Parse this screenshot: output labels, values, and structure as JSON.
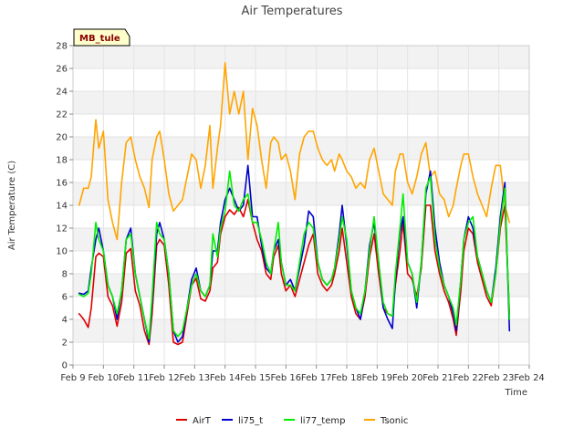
{
  "chart_data": {
    "type": "line",
    "title": "Air Temperatures",
    "xlabel": "Time",
    "ylabel": "Air Temperature (C)",
    "site_label": "MB_tule",
    "ylim": [
      0,
      28
    ],
    "yticks": [
      0,
      2,
      4,
      6,
      8,
      10,
      12,
      14,
      16,
      18,
      20,
      22,
      24,
      26,
      28
    ],
    "xlim": [
      9,
      24
    ],
    "xticks": [
      {
        "value": 9,
        "label": "Feb 9"
      },
      {
        "value": 10,
        "label": "Feb 10"
      },
      {
        "value": 11,
        "label": "Feb 11"
      },
      {
        "value": 12,
        "label": "Feb 12"
      },
      {
        "value": 13,
        "label": "Feb 13"
      },
      {
        "value": 14,
        "label": "Feb 14"
      },
      {
        "value": 15,
        "label": "Feb 15"
      },
      {
        "value": 16,
        "label": "Feb 16"
      },
      {
        "value": 17,
        "label": "Feb 17"
      },
      {
        "value": 18,
        "label": "Feb 18"
      },
      {
        "value": 19,
        "label": "Feb 19"
      },
      {
        "value": 20,
        "label": "Feb 20"
      },
      {
        "value": 21,
        "label": "Feb 21"
      },
      {
        "value": 22,
        "label": "Feb 22"
      },
      {
        "value": 23,
        "label": "Feb 23"
      },
      {
        "value": 24,
        "label": "Feb 24"
      }
    ],
    "grid": true,
    "legend_position": "bottom",
    "series": [
      {
        "name": "AirT",
        "color": "#dd0000",
        "x": [
          9.2,
          9.35,
          9.5,
          9.6,
          9.75,
          9.85,
          10.0,
          10.15,
          10.3,
          10.45,
          10.6,
          10.75,
          10.9,
          11.05,
          11.2,
          11.35,
          11.5,
          11.6,
          11.75,
          11.85,
          12.0,
          12.15,
          12.3,
          12.45,
          12.6,
          12.75,
          12.9,
          13.05,
          13.2,
          13.35,
          13.5,
          13.6,
          13.75,
          13.85,
          14.0,
          14.15,
          14.3,
          14.45,
          14.6,
          14.75,
          14.9,
          15.05,
          15.2,
          15.35,
          15.5,
          15.6,
          15.75,
          15.85,
          16.0,
          16.15,
          16.3,
          16.45,
          16.6,
          16.75,
          16.9,
          17.05,
          17.2,
          17.35,
          17.5,
          17.6,
          17.75,
          17.85,
          18.0,
          18.15,
          18.3,
          18.45,
          18.6,
          18.75,
          18.9,
          19.05,
          19.2,
          19.35,
          19.5,
          19.6,
          19.75,
          19.85,
          20.0,
          20.15,
          20.3,
          20.45,
          20.6,
          20.75,
          20.9,
          21.05,
          21.2,
          21.35,
          21.5,
          21.6,
          21.75,
          21.85,
          22.0,
          22.15,
          22.3,
          22.45,
          22.6,
          22.75,
          22.9,
          23.05,
          23.2,
          23.35
        ],
        "y": [
          4.5,
          4.0,
          3.3,
          5.0,
          9.5,
          9.8,
          9.5,
          6.0,
          5.2,
          3.4,
          5.5,
          9.8,
          10.2,
          6.5,
          5.2,
          3.0,
          1.8,
          4.5,
          10.5,
          11.0,
          10.5,
          7.0,
          2.0,
          1.8,
          2.0,
          4.5,
          7.0,
          7.6,
          5.8,
          5.6,
          6.5,
          8.5,
          9.0,
          11.5,
          13.0,
          13.6,
          13.2,
          13.8,
          13.0,
          14.5,
          12.5,
          11.0,
          10.0,
          8.0,
          7.5,
          9.5,
          10.5,
          8.0,
          6.5,
          7.0,
          6.0,
          7.5,
          9.0,
          10.5,
          11.5,
          8.0,
          7.0,
          6.5,
          7.0,
          8.0,
          10.0,
          12.0,
          9.0,
          6.0,
          4.5,
          4.0,
          6.0,
          9.5,
          11.5,
          8.0,
          5.0,
          4.5,
          4.3,
          7.0,
          10.0,
          12.5,
          8.0,
          7.5,
          6.0,
          8.5,
          14.0,
          14.0,
          10.0,
          8.0,
          6.5,
          5.5,
          4.0,
          2.6,
          6.5,
          10.0,
          12.0,
          11.5,
          9.0,
          7.5,
          6.0,
          5.2,
          8.0,
          12.0,
          14.0,
          4.5
        ]
      },
      {
        "name": "li75_t",
        "color": "#0000cc",
        "x": [
          9.2,
          9.35,
          9.5,
          9.6,
          9.75,
          9.85,
          10.0,
          10.15,
          10.3,
          10.45,
          10.6,
          10.75,
          10.9,
          11.05,
          11.2,
          11.35,
          11.5,
          11.6,
          11.75,
          11.85,
          12.0,
          12.15,
          12.3,
          12.45,
          12.6,
          12.75,
          12.9,
          13.05,
          13.2,
          13.35,
          13.5,
          13.6,
          13.75,
          13.85,
          14.0,
          14.15,
          14.3,
          14.45,
          14.6,
          14.75,
          14.9,
          15.05,
          15.2,
          15.35,
          15.5,
          15.6,
          15.75,
          15.85,
          16.0,
          16.15,
          16.3,
          16.45,
          16.6,
          16.75,
          16.9,
          17.05,
          17.2,
          17.35,
          17.5,
          17.6,
          17.75,
          17.85,
          18.0,
          18.15,
          18.3,
          18.45,
          18.6,
          18.75,
          18.9,
          19.05,
          19.2,
          19.35,
          19.5,
          19.6,
          19.75,
          19.85,
          20.0,
          20.15,
          20.3,
          20.45,
          20.6,
          20.75,
          20.9,
          21.05,
          21.2,
          21.35,
          21.5,
          21.6,
          21.75,
          21.85,
          22.0,
          22.15,
          22.3,
          22.45,
          22.6,
          22.75,
          22.9,
          23.05,
          23.2,
          23.35
        ],
        "y": [
          6.3,
          6.2,
          6.5,
          8.5,
          11.0,
          12.0,
          10.0,
          7.0,
          6.0,
          4.0,
          6.5,
          11.0,
          12.0,
          8.0,
          6.0,
          4.0,
          2.0,
          5.5,
          11.5,
          12.5,
          11.0,
          8.0,
          3.0,
          2.0,
          2.5,
          5.0,
          7.5,
          8.5,
          6.5,
          6.0,
          7.0,
          10.0,
          10.0,
          12.5,
          14.5,
          15.5,
          14.5,
          13.5,
          14.0,
          17.5,
          13.0,
          13.0,
          10.5,
          8.5,
          8.0,
          10.0,
          11.0,
          9.0,
          7.0,
          7.5,
          6.5,
          8.5,
          10.5,
          13.5,
          13.0,
          9.0,
          7.5,
          7.0,
          7.5,
          8.5,
          11.5,
          14.0,
          10.5,
          6.5,
          5.0,
          4.0,
          6.5,
          10.5,
          12.5,
          9.0,
          5.0,
          4.0,
          3.2,
          7.5,
          11.5,
          13.0,
          9.0,
          8.0,
          5.0,
          9.0,
          15.0,
          17.0,
          12.0,
          9.0,
          7.0,
          6.0,
          4.5,
          3.0,
          7.5,
          11.0,
          13.0,
          12.0,
          9.5,
          8.0,
          6.5,
          5.5,
          8.5,
          13.0,
          16.0,
          3.0
        ]
      },
      {
        "name": "li77_temp",
        "color": "#00ee00",
        "x": [
          9.2,
          9.35,
          9.5,
          9.6,
          9.75,
          9.85,
          10.0,
          10.15,
          10.3,
          10.45,
          10.6,
          10.75,
          10.9,
          11.05,
          11.2,
          11.35,
          11.5,
          11.6,
          11.75,
          11.85,
          12.0,
          12.15,
          12.3,
          12.45,
          12.6,
          12.75,
          12.9,
          13.05,
          13.2,
          13.35,
          13.5,
          13.6,
          13.75,
          13.85,
          14.0,
          14.15,
          14.3,
          14.45,
          14.6,
          14.75,
          14.9,
          15.05,
          15.2,
          15.35,
          15.5,
          15.6,
          15.75,
          15.85,
          16.0,
          16.15,
          16.3,
          16.45,
          16.6,
          16.75,
          16.9,
          17.05,
          17.2,
          17.35,
          17.5,
          17.6,
          17.75,
          17.85,
          18.0,
          18.15,
          18.3,
          18.45,
          18.6,
          18.75,
          18.9,
          19.05,
          19.2,
          19.35,
          19.5,
          19.6,
          19.75,
          19.85,
          20.0,
          20.15,
          20.3,
          20.45,
          20.6,
          20.75,
          20.9,
          21.05,
          21.2,
          21.35,
          21.5,
          21.6,
          21.75,
          21.85,
          22.0,
          22.15,
          22.3,
          22.45,
          22.6,
          22.75,
          22.9,
          23.05,
          23.2,
          23.35
        ],
        "y": [
          6.2,
          6.0,
          6.3,
          8.0,
          12.5,
          11.0,
          10.0,
          7.0,
          6.0,
          4.5,
          6.5,
          11.0,
          11.5,
          8.0,
          6.0,
          4.0,
          2.3,
          6.0,
          12.5,
          11.5,
          11.0,
          8.0,
          3.0,
          2.5,
          3.0,
          5.0,
          7.0,
          8.0,
          6.5,
          6.0,
          7.0,
          11.5,
          9.5,
          12.0,
          13.5,
          17.0,
          14.0,
          13.5,
          14.5,
          15.0,
          12.5,
          12.5,
          11.0,
          9.0,
          8.0,
          10.0,
          12.5,
          9.0,
          7.0,
          7.0,
          6.5,
          9.0,
          11.5,
          12.5,
          12.0,
          9.0,
          7.5,
          7.0,
          7.5,
          8.5,
          11.0,
          13.0,
          11.0,
          6.5,
          5.0,
          4.5,
          6.5,
          10.0,
          13.0,
          9.0,
          5.5,
          4.5,
          4.3,
          8.0,
          12.0,
          15.0,
          9.0,
          8.0,
          5.5,
          9.0,
          15.5,
          16.5,
          11.0,
          8.5,
          7.0,
          6.0,
          5.0,
          3.5,
          7.5,
          11.0,
          12.5,
          13.0,
          9.5,
          8.0,
          6.5,
          5.5,
          8.0,
          12.5,
          15.5,
          4.0
        ]
      },
      {
        "name": "Tsonic",
        "color": "#ffa500",
        "x": [
          9.2,
          9.35,
          9.5,
          9.6,
          9.75,
          9.85,
          10.0,
          10.15,
          10.3,
          10.45,
          10.6,
          10.75,
          10.9,
          11.05,
          11.2,
          11.35,
          11.5,
          11.6,
          11.75,
          11.85,
          12.0,
          12.15,
          12.3,
          12.45,
          12.6,
          12.75,
          12.9,
          13.05,
          13.2,
          13.35,
          13.5,
          13.6,
          13.75,
          13.85,
          14.0,
          14.15,
          14.3,
          14.45,
          14.6,
          14.75,
          14.9,
          15.05,
          15.2,
          15.35,
          15.5,
          15.6,
          15.75,
          15.85,
          16.0,
          16.15,
          16.3,
          16.45,
          16.6,
          16.75,
          16.9,
          17.05,
          17.2,
          17.35,
          17.5,
          17.6,
          17.75,
          17.85,
          18.0,
          18.15,
          18.3,
          18.45,
          18.6,
          18.75,
          18.9,
          19.05,
          19.2,
          19.35,
          19.5,
          19.6,
          19.75,
          19.85,
          20.0,
          20.15,
          20.3,
          20.45,
          20.6,
          20.75,
          20.9,
          21.05,
          21.2,
          21.35,
          21.5,
          21.6,
          21.75,
          21.85,
          22.0,
          22.15,
          22.3,
          22.45,
          22.6,
          22.75,
          22.9,
          23.05,
          23.2,
          23.35
        ],
        "y": [
          14.0,
          15.5,
          15.5,
          16.5,
          21.5,
          19.0,
          20.5,
          14.5,
          12.5,
          11.0,
          16.0,
          19.5,
          20.0,
          18.0,
          16.5,
          15.5,
          13.8,
          18.0,
          20.0,
          20.5,
          18.0,
          15.0,
          13.5,
          14.0,
          14.5,
          16.5,
          18.5,
          18.0,
          15.5,
          17.5,
          21.0,
          15.5,
          19.0,
          21.0,
          26.5,
          22.0,
          24.0,
          22.0,
          24.0,
          18.0,
          22.5,
          21.0,
          18.0,
          15.5,
          19.5,
          20.0,
          19.5,
          18.0,
          18.5,
          17.0,
          14.5,
          18.5,
          20.0,
          20.5,
          20.5,
          19.0,
          18.0,
          17.5,
          18.0,
          17.0,
          18.5,
          18.0,
          17.0,
          16.5,
          15.5,
          16.0,
          15.5,
          18.0,
          19.0,
          17.0,
          15.0,
          14.5,
          14.0,
          17.0,
          18.5,
          18.5,
          16.0,
          15.0,
          16.5,
          18.5,
          19.5,
          16.5,
          17.0,
          15.0,
          14.5,
          13.0,
          14.0,
          15.5,
          17.5,
          18.5,
          18.5,
          16.5,
          15.0,
          14.0,
          13.0,
          15.5,
          17.5,
          17.5,
          14.0,
          12.5
        ]
      }
    ]
  }
}
